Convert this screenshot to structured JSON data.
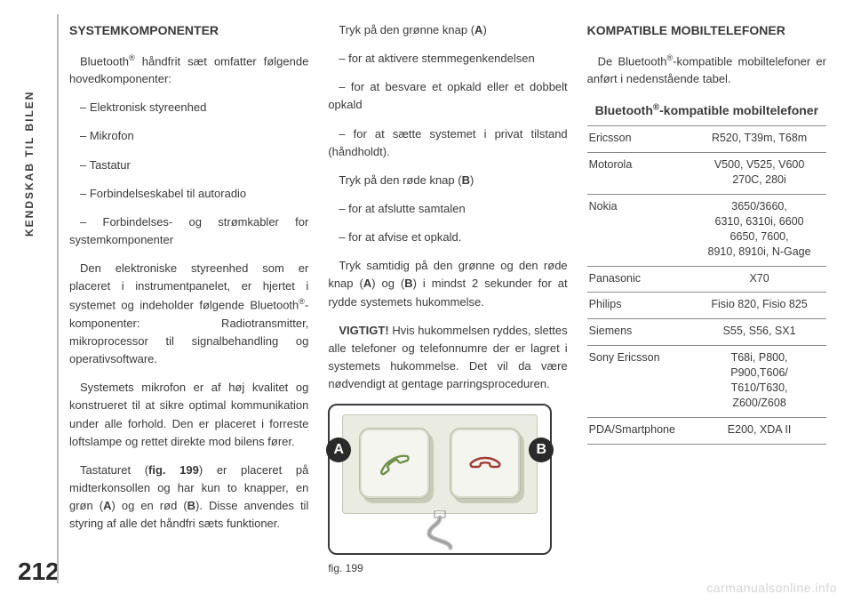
{
  "page": {
    "number": "212",
    "side_tab": "KENDSKAB TIL BILEN",
    "watermark": "carmanualsonline.info"
  },
  "col1": {
    "heading": "SYSTEMKOMPONENTER",
    "p1_a": "Bluetooth",
    "p1_sup": "®",
    "p1_b": " håndfrit sæt omfatter følgende hovedkomponenter:",
    "li1": "– Elektronisk styreenhed",
    "li2": "– Mikrofon",
    "li3": "– Tastatur",
    "li4": "– Forbindelseskabel til autoradio",
    "li5": "– Forbindelses- og strømkabler for systemkomponenter",
    "p2_a": "Den elektroniske styreenhed som er placeret i instrumentpanelet, er hjertet i systemet og indeholder følgende Bluetooth",
    "p2_sup": "®",
    "p2_b": "-komponenter: Radiotransmitter, mikroprocessor til signalbehandling og operativsoftware.",
    "p3": "Systemets mikrofon er af høj kvalitet og konstrueret til at sikre optimal kommunikation under alle forhold. Den er placeret i forreste loftslampe og rettet direkte mod bilens fører.",
    "p4_a": "Tastaturet (",
    "p4_b1": "fig. 199",
    "p4_c": ") er placeret på midterkonsollen og har kun to knapper, en grøn (",
    "p4_b2": "A",
    "p4_d": ") og en rød (",
    "p4_b3": "B",
    "p4_e": "). Disse anvendes til styring af alle det håndfri sæts funktioner."
  },
  "col2": {
    "p1_a": "Tryk på den grønne knap (",
    "p1_b": "A",
    "p1_c": ")",
    "li1": "– for at aktivere stemmegenkendelsen",
    "li2": "– for at besvare et opkald eller et dobbelt opkald",
    "li3": "– for at sætte systemet i privat tilstand (håndholdt).",
    "p2_a": "Tryk på den røde knap (",
    "p2_b": "B",
    "p2_c": ")",
    "li4": "– for at afslutte samtalen",
    "li5": "– for at afvise et opkald.",
    "p3_a": "Tryk samtidig på den grønne og den røde knap (",
    "p3_b1": "A",
    "p3_b_mid": ") og (",
    "p3_b2": "B",
    "p3_c": ") i mindst 2 sekunder for at rydde systemets hukommelse.",
    "p4_a": "VIGTIGT!",
    "p4_b": " Hvis hukommelsen ryddes, slettes alle telefoner og telefonnumre der er lagret i systemets hukommelse. Det vil da være nødvendigt at gentage parringsproceduren.",
    "fig_a": "A",
    "fig_b": "B",
    "fig_caption": "fig. 199"
  },
  "col3": {
    "heading": "KOMPATIBLE MOBILTELEFONER",
    "p1_a": "De Bluetooth",
    "p1_sup": "®",
    "p1_b": "-kompatible mobiltelefoner er anført i nedenstående tabel.",
    "table_title_a": "Bluetooth",
    "table_title_sup": "®",
    "table_title_b": "-kompatible mobiltelefoner",
    "rows": {
      "r0": {
        "brand": "Ericsson",
        "models": "R520, T39m, T68m"
      },
      "r1": {
        "brand": "Motorola",
        "models": "V500, V525, V600\n270C, 280i"
      },
      "r2": {
        "brand": "Nokia",
        "models": "3650/3660,\n6310, 6310i, 6600\n6650, 7600,\n8910, 8910i, N-Gage"
      },
      "r3": {
        "brand": "Panasonic",
        "models": "X70"
      },
      "r4": {
        "brand": "Philips",
        "models": "Fisio 820, Fisio 825"
      },
      "r5": {
        "brand": "Siemens",
        "models": "S55, S56, SX1"
      },
      "r6": {
        "brand": "Sony Ericsson",
        "models": "T68i, P800,\nP900,T606/\nT610/T630,\nZ600/Z608"
      },
      "r7": {
        "brand": "PDA/Smartphone",
        "models": "E200, XDA II"
      }
    }
  },
  "style": {
    "page_bg": "#ffffff",
    "text_color": "#3a3a3a",
    "border_color": "#8a8a8a",
    "fig_bg": "#eaece2",
    "fig_btn_bg": "#f4f5ee",
    "fig_label_bg": "#2a2a2a",
    "green_handset": "#6f8f4b",
    "red_handset": "#a03c38"
  }
}
